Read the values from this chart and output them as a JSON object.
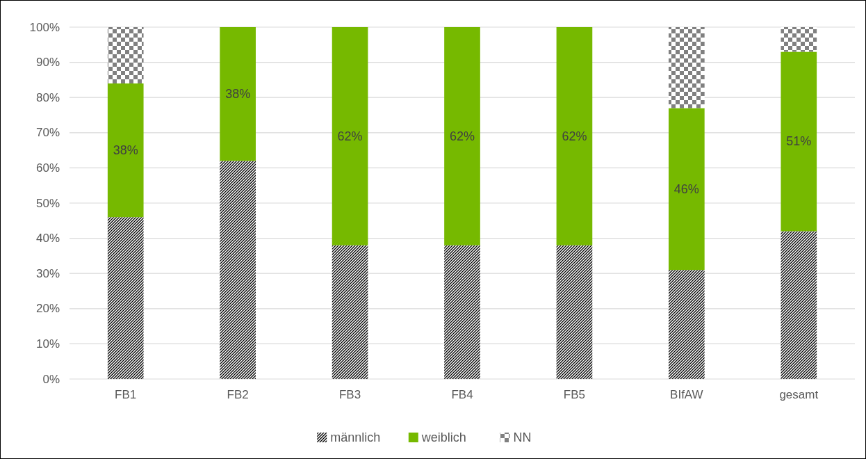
{
  "chart_data": {
    "type": "bar",
    "stacked": true,
    "categories": [
      "FB1",
      "FB2",
      "FB3",
      "FB4",
      "FB5",
      "BIfAW",
      "gesamt"
    ],
    "series": [
      {
        "name": "männlich",
        "color": "#000000",
        "values": [
          46,
          62,
          38,
          38,
          38,
          31,
          42
        ]
      },
      {
        "name": "weiblich",
        "color": "#76b900",
        "values": [
          38,
          38,
          62,
          62,
          62,
          46,
          51
        ],
        "value_labels": [
          "38%",
          "38%",
          "62%",
          "62%",
          "62%",
          "46%",
          "51%"
        ]
      },
      {
        "name": "NN",
        "color": "#808080",
        "values": [
          16,
          0,
          0,
          0,
          0,
          23,
          7
        ]
      }
    ],
    "ylim": [
      0,
      100
    ],
    "yticks": [
      {
        "value": 0,
        "label": "0%"
      },
      {
        "value": 10,
        "label": "10%"
      },
      {
        "value": 20,
        "label": "20%"
      },
      {
        "value": 30,
        "label": "30%"
      },
      {
        "value": 40,
        "label": "40%"
      },
      {
        "value": 50,
        "label": "50%"
      },
      {
        "value": 60,
        "label": "60%"
      },
      {
        "value": 70,
        "label": "70%"
      },
      {
        "value": 80,
        "label": "80%"
      },
      {
        "value": 90,
        "label": "90%"
      },
      {
        "value": 100,
        "label": "100%"
      }
    ],
    "grid": "y",
    "legend": "bottom"
  }
}
